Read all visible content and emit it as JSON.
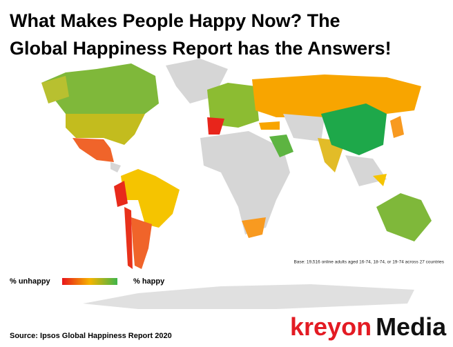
{
  "title": [
    "What Makes People Happy Now? The",
    "Global Happiness Report has the Answers!"
  ],
  "legend": {
    "low": "% unhappy",
    "high": "% happy"
  },
  "base_note": "Base: 19,516 online adults aged 16-74, 18-74, or 19-74 across 27 countries",
  "source": "Source: Ipsos Global Happiness Report 2020",
  "logo": {
    "part1": "kreyon",
    "part2": "Media"
  }
}
